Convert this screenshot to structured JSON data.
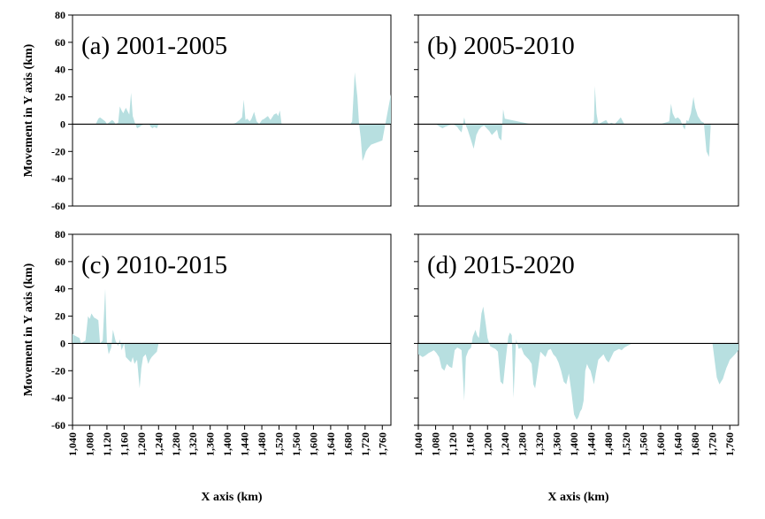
{
  "chart_data": [
    {
      "type": "area",
      "title": "(a) 2001-2005",
      "xlabel": "",
      "ylabel": "Movement in Y axis (km)",
      "xlim": [
        1040,
        1780
      ],
      "ylim": [
        -60,
        80
      ],
      "yticks": [
        80,
        60,
        40,
        20,
        0,
        -20,
        -40,
        -60
      ],
      "xticks": [],
      "x": [
        1040,
        1052,
        1058,
        1064,
        1070,
        1078,
        1084,
        1088,
        1094,
        1100,
        1104,
        1108,
        1112,
        1116,
        1120,
        1124,
        1128,
        1132,
        1136,
        1140,
        1146,
        1150,
        1154,
        1158,
        1164,
        1172,
        1176,
        1180,
        1186,
        1190,
        1196,
        1200,
        1208,
        1214,
        1218,
        1222,
        1226,
        1230,
        1236,
        1240,
        1300,
        1400,
        1412,
        1420,
        1424,
        1428,
        1434,
        1438,
        1442,
        1446,
        1452,
        1456,
        1462,
        1468,
        1474,
        1480,
        1486,
        1490,
        1494,
        1500,
        1508,
        1514,
        1518,
        1522,
        1526,
        1532,
        1540,
        1600,
        1640,
        1650,
        1656,
        1662,
        1666,
        1670,
        1676,
        1680,
        1686,
        1690,
        1696,
        1702,
        1706,
        1710,
        1714,
        1718,
        1722,
        1726,
        1734,
        1760,
        1780
      ],
      "values": [
        0,
        0,
        0,
        0,
        0,
        0,
        0,
        0,
        0,
        4,
        5,
        4,
        3,
        2,
        0,
        1,
        2,
        3,
        2,
        0,
        1,
        13,
        10,
        8,
        12,
        7,
        23,
        6,
        0,
        -3,
        -2,
        -1,
        0,
        0,
        0,
        -2,
        -3,
        -2,
        -3,
        0,
        0,
        0,
        0,
        1,
        2,
        3,
        5,
        18,
        3,
        4,
        2,
        4,
        9,
        2,
        0,
        3,
        4,
        5,
        6,
        3,
        7,
        8,
        6,
        10,
        0,
        0,
        0,
        0,
        0,
        0,
        0,
        0,
        0,
        0,
        0,
        0,
        0,
        2,
        38,
        20,
        0,
        -10,
        -27,
        -24,
        -20,
        -18,
        -15,
        -12,
        22
      ]
    },
    {
      "type": "area",
      "title": "(b) 2005-2010",
      "xlabel": "",
      "ylabel": "",
      "xlim": [
        1040,
        1780
      ],
      "ylim": [
        -60,
        80
      ],
      "xticks": [],
      "x": [
        1040,
        1064,
        1080,
        1090,
        1096,
        1102,
        1110,
        1120,
        1130,
        1134,
        1140,
        1146,
        1150,
        1154,
        1162,
        1168,
        1174,
        1180,
        1186,
        1192,
        1198,
        1204,
        1210,
        1216,
        1222,
        1226,
        1232,
        1236,
        1240,
        1300,
        1440,
        1446,
        1448,
        1452,
        1456,
        1462,
        1468,
        1474,
        1480,
        1486,
        1494,
        1500,
        1508,
        1516,
        1520,
        1540,
        1600,
        1620,
        1624,
        1628,
        1634,
        1640,
        1646,
        1652,
        1656,
        1660,
        1664,
        1670,
        1676,
        1680,
        1686,
        1690,
        1694,
        1700,
        1706,
        1712,
        1716,
        1722,
        1728,
        1760,
        1780
      ],
      "values": [
        0,
        0,
        0,
        -2,
        -3,
        -2,
        -1,
        0,
        -2,
        -4,
        -6,
        5,
        -1,
        -4,
        -12,
        -18,
        -8,
        -4,
        -2,
        -1,
        -3,
        -5,
        -8,
        -6,
        -4,
        -10,
        -12,
        11,
        4,
        0,
        0,
        2,
        28,
        8,
        0,
        1,
        2,
        3,
        0,
        1,
        0,
        2,
        5,
        0,
        0,
        0,
        0,
        2,
        15,
        8,
        4,
        5,
        3,
        -2,
        -4,
        3,
        2,
        8,
        20,
        12,
        6,
        4,
        2,
        1,
        -20,
        -24,
        0,
        0,
        0,
        0,
        0
      ]
    },
    {
      "type": "area",
      "title": "(c) 2010-2015",
      "xlabel": "X axis (km)",
      "ylabel": "Movement in Y axis (km)",
      "xlim": [
        1040,
        1780
      ],
      "ylim": [
        -60,
        80
      ],
      "yticks": [
        80,
        60,
        40,
        20,
        0,
        -20,
        -40,
        -60
      ],
      "xticks": [
        "1,040",
        "1,080",
        "1,120",
        "1,160",
        "1,200",
        "1,240",
        "1,280",
        "1,320",
        "1,360",
        "1,400",
        "1,440",
        "1,480",
        "1,520",
        "1,560",
        "1,600",
        "1,640",
        "1,680",
        "1,720",
        "1,760"
      ],
      "x": [
        1040,
        1044,
        1050,
        1056,
        1060,
        1064,
        1070,
        1076,
        1080,
        1084,
        1090,
        1096,
        1100,
        1104,
        1110,
        1116,
        1120,
        1124,
        1130,
        1134,
        1140,
        1146,
        1150,
        1154,
        1160,
        1164,
        1170,
        1176,
        1180,
        1184,
        1190,
        1196,
        1200,
        1204,
        1210,
        1216,
        1220,
        1224,
        1230,
        1236,
        1240,
        1300,
        1380,
        1390,
        1396,
        1400,
        1404,
        1410,
        1414,
        1418,
        1422,
        1426,
        1430,
        1434,
        1438,
        1442,
        1446,
        1450,
        1454,
        1458,
        1462,
        1470,
        1476,
        1480,
        1486,
        1492,
        1500,
        1506,
        1512,
        1516,
        1520,
        1526,
        1532,
        1560,
        1600,
        1640,
        1650,
        1656,
        1662,
        1666,
        1670,
        1676,
        1680,
        1684,
        1690,
        1696,
        1700,
        1706,
        1712,
        1716,
        1720,
        1726,
        1732,
        1738,
        1744,
        1750,
        1756,
        1762,
        1768,
        1780
      ],
      "values": [
        7,
        6,
        5,
        4,
        0,
        1,
        2,
        20,
        18,
        22,
        19,
        18,
        17,
        0,
        2,
        40,
        0,
        -8,
        -3,
        10,
        2,
        -2,
        3,
        -5,
        0,
        -10,
        -12,
        -14,
        -10,
        -15,
        -12,
        -33,
        -18,
        -10,
        -8,
        -15,
        -12,
        -10,
        -8,
        -6,
        0,
        0,
        0,
        0,
        0,
        0,
        0,
        0,
        0,
        0,
        0,
        0,
        0,
        0,
        0,
        0,
        0,
        0,
        0,
        0,
        0,
        0,
        0,
        0,
        0,
        0,
        0,
        0,
        0,
        0,
        0,
        0,
        0,
        0,
        0,
        0,
        0,
        0,
        0,
        0,
        0,
        0,
        0,
        0,
        0,
        0,
        0,
        0,
        0,
        0,
        0,
        0,
        0,
        0,
        0,
        0,
        0,
        0,
        0,
        0
      ]
    },
    {
      "type": "area",
      "title": "(d) 2015-2020",
      "xlabel": "X axis (km)",
      "ylabel": "",
      "xlim": [
        1040,
        1780
      ],
      "ylim": [
        -60,
        80
      ],
      "xticks": [
        "1,040",
        "1,080",
        "1,120",
        "1,160",
        "1,200",
        "1,240",
        "1,280",
        "1,320",
        "1,360",
        "1,400",
        "1,440",
        "1,480",
        "1,520",
        "1,560",
        "1,600",
        "1,640",
        "1,680",
        "1,720",
        "1,760"
      ],
      "x": [
        1040,
        1050,
        1056,
        1064,
        1070,
        1076,
        1082,
        1088,
        1094,
        1100,
        1106,
        1112,
        1118,
        1124,
        1130,
        1136,
        1140,
        1146,
        1150,
        1156,
        1162,
        1166,
        1172,
        1176,
        1180,
        1186,
        1190,
        1196,
        1200,
        1206,
        1212,
        1218,
        1224,
        1230,
        1236,
        1242,
        1248,
        1252,
        1256,
        1260,
        1266,
        1272,
        1278,
        1284,
        1290,
        1296,
        1302,
        1306,
        1310,
        1316,
        1322,
        1328,
        1334,
        1340,
        1346,
        1352,
        1358,
        1364,
        1370,
        1376,
        1382,
        1388,
        1394,
        1400,
        1406,
        1410,
        1414,
        1418,
        1422,
        1426,
        1430,
        1434,
        1438,
        1442,
        1446,
        1450,
        1456,
        1462,
        1468,
        1474,
        1480,
        1486,
        1492,
        1498,
        1504,
        1510,
        1516,
        1522,
        1528,
        1534,
        1540,
        1600,
        1660,
        1700,
        1720,
        1730,
        1736,
        1740,
        1744,
        1748,
        1752,
        1756,
        1760,
        1766,
        1772,
        1780
      ],
      "values": [
        -8,
        -10,
        -9,
        -7,
        -6,
        -5,
        -7,
        -10,
        -18,
        -20,
        -15,
        -17,
        -18,
        -5,
        -3,
        -4,
        -5,
        -42,
        -10,
        -5,
        -3,
        5,
        10,
        6,
        4,
        22,
        27,
        14,
        4,
        -2,
        -3,
        -4,
        -6,
        -28,
        -30,
        -12,
        5,
        8,
        6,
        -40,
        3,
        -4,
        -3,
        -8,
        -10,
        -12,
        -15,
        -30,
        -33,
        -20,
        -6,
        -8,
        -10,
        -5,
        -4,
        -8,
        -10,
        -14,
        -20,
        -28,
        -30,
        -22,
        -36,
        -52,
        -56,
        -54,
        -50,
        -48,
        -42,
        -20,
        -15,
        -18,
        -20,
        -25,
        -30,
        -22,
        -12,
        -10,
        -8,
        -12,
        -14,
        -10,
        -6,
        -5,
        -4,
        -5,
        -3,
        -2,
        -1,
        0,
        0,
        0,
        0,
        0,
        0,
        -25,
        -30,
        -28,
        -26,
        -22,
        -18,
        -15,
        -12,
        -10,
        -8,
        -5
      ]
    }
  ],
  "icons": {}
}
